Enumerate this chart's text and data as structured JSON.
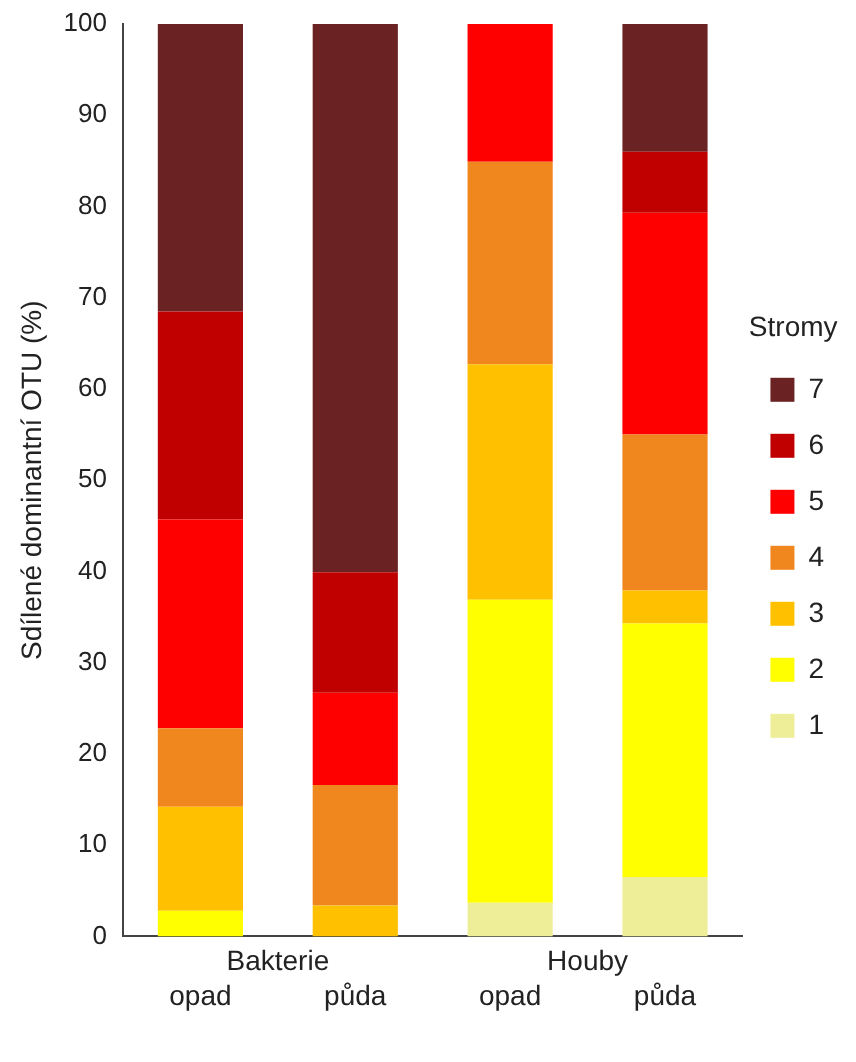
{
  "chart_data": {
    "type": "bar",
    "stacked": true,
    "ylabel": "Sdílené dominantní OTU (%)",
    "legend_title": "Stromy",
    "legend": "right",
    "grid": false,
    "categories": [
      "opad",
      "půda",
      "opad",
      "půda"
    ],
    "annotations": [
      "Bakterie",
      "Houby"
    ],
    "ylim": [
      0,
      100
    ],
    "yticks": [
      0,
      10,
      20,
      30,
      40,
      50,
      60,
      70,
      80,
      90,
      100
    ],
    "series": [
      {
        "name": "1",
        "color": "#eeee99",
        "values": [
          0,
          0,
          3.7,
          6.5
        ]
      },
      {
        "name": "2",
        "color": "#ffff00",
        "values": [
          2.8,
          0,
          33.2,
          27.8
        ]
      },
      {
        "name": "3",
        "color": "#ffc000",
        "values": [
          11.4,
          3.4,
          25.8,
          3.6
        ]
      },
      {
        "name": "4",
        "color": "#f0861e",
        "values": [
          8.6,
          13.2,
          22.2,
          17.1
        ]
      },
      {
        "name": "5",
        "color": "#ff0000",
        "values": [
          22.9,
          10.1,
          15.1,
          24.3
        ]
      },
      {
        "name": "6",
        "color": "#c00000",
        "values": [
          22.8,
          13.2,
          0,
          6.7
        ]
      },
      {
        "name": "7",
        "color": "#6b2222",
        "values": [
          31.5,
          60.1,
          0,
          14.0
        ]
      }
    ]
  }
}
